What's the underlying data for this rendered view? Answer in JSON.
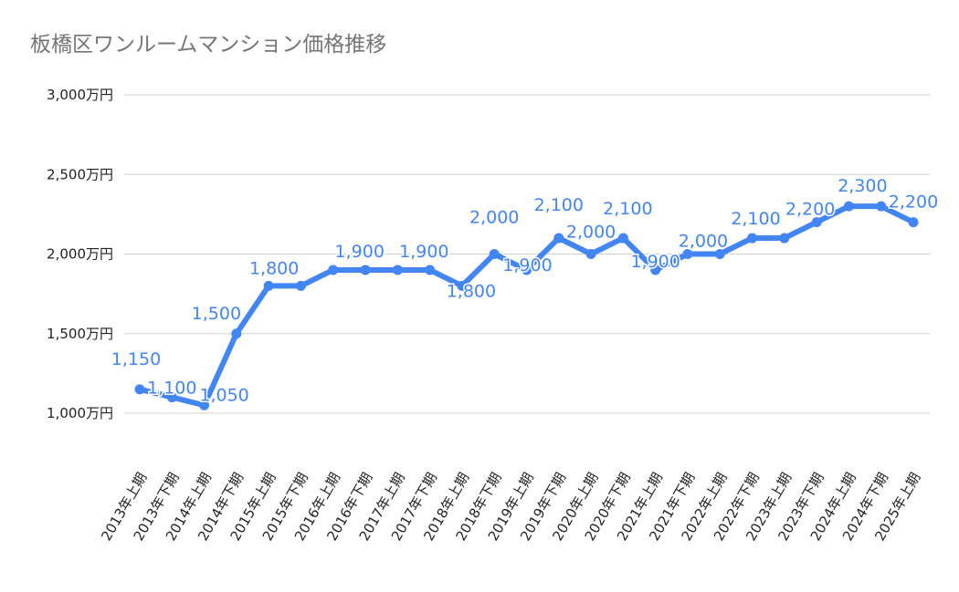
{
  "chart_data": {
    "type": "line",
    "title": "板橋区ワンルームマンション価格推移",
    "xlabel": "",
    "ylabel": "",
    "categories": [
      "2013年上期",
      "2013年下期",
      "2014年上期",
      "2014年下期",
      "2015年上期",
      "2015年下期",
      "2016年上期",
      "2016年下期",
      "2017年上期",
      "2017年下期",
      "2018年上期",
      "2018年下期",
      "2019年上期",
      "2019年下期",
      "2020年上期",
      "2020年下期",
      "2021年上期",
      "2021年下期",
      "2022年上期",
      "2022年下期",
      "2023年上期",
      "2023年下期",
      "2024年上期",
      "2024年下期",
      "2025年上期"
    ],
    "values": [
      1150,
      1100,
      1050,
      1500,
      1800,
      1800,
      1900,
      1900,
      1900,
      1900,
      1800,
      2000,
      1900,
      2100,
      2000,
      2100,
      1900,
      2000,
      2000,
      2100,
      2100,
      2200,
      2300,
      2300,
      2200
    ],
    "data_labels": [
      "1,150",
      "1,100",
      "1,050",
      "1,500",
      "1,800",
      null,
      "1,900",
      null,
      "1,900",
      null,
      "1,800",
      "2,000",
      "1,900",
      "2,100",
      "2,000",
      "2,100",
      "1,900",
      "2,000",
      null,
      "2,100",
      null,
      "2,200",
      "2,300",
      null,
      "2,200"
    ],
    "yticks": [
      1000,
      1500,
      2000,
      2500,
      3000
    ],
    "ytick_labels": [
      "1,000万円",
      "1,500万円",
      "2,000万円",
      "2,500万円",
      "3,000万円"
    ],
    "ylim": [
      1000,
      3000
    ],
    "grid": true,
    "legend": "none",
    "line_color": "#4285f4"
  }
}
